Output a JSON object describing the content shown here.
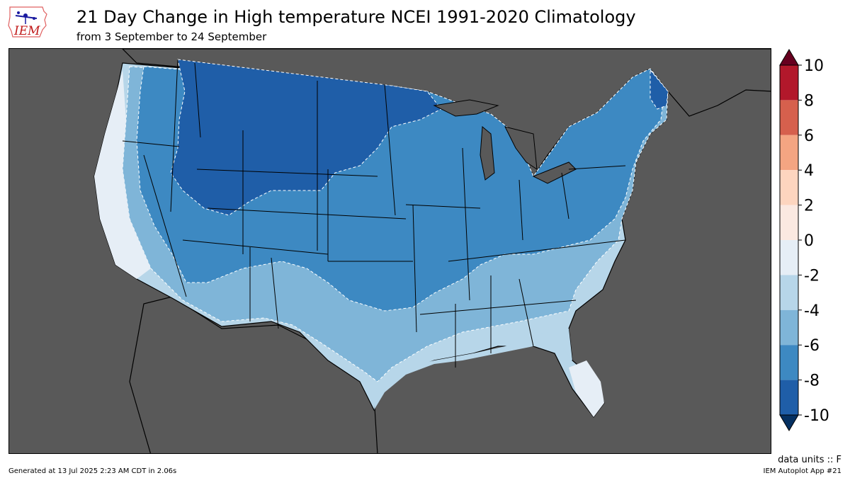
{
  "header": {
    "logo_text": "IEM",
    "title": "21 Day Change in High temperature NCEI 1991-2020 Climatology",
    "subtitle": "from 3 September to 24 September"
  },
  "map": {
    "background_color": "#595959",
    "ocean_color": "#595959",
    "region": "Contiguous United States"
  },
  "colorbar": {
    "ticks": [
      "10",
      "8",
      "6",
      "4",
      "2",
      "0",
      "-2",
      "-4",
      "-6",
      "-8",
      "-10"
    ],
    "bins": [
      {
        "from": 8,
        "to": 10,
        "color": "#b2182b"
      },
      {
        "from": 6,
        "to": 8,
        "color": "#d6604d"
      },
      {
        "from": 4,
        "to": 6,
        "color": "#f4a582"
      },
      {
        "from": 2,
        "to": 4,
        "color": "#fdd5bf"
      },
      {
        "from": 0,
        "to": 2,
        "color": "#fbe9e1"
      },
      {
        "from": -2,
        "to": 0,
        "color": "#e6eef6"
      },
      {
        "from": -4,
        "to": -2,
        "color": "#b7d6e9"
      },
      {
        "from": -6,
        "to": -4,
        "color": "#7fb5d8"
      },
      {
        "from": -8,
        "to": -6,
        "color": "#3d89c2"
      },
      {
        "from": -10,
        "to": -8,
        "color": "#1f5ea8"
      }
    ],
    "over_color": "#67001f",
    "under_color": "#053061"
  },
  "footer": {
    "units": "data units :: F",
    "generated": "Generated at 13 Jul 2025 2:23 AM CDT in 2.06s",
    "app": "IEM Autoplot App #21"
  }
}
